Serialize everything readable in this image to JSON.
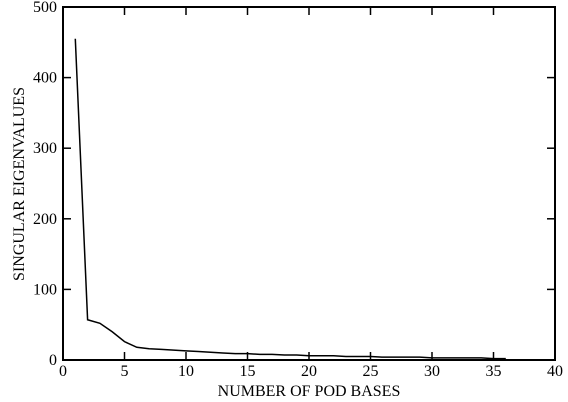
{
  "chart_data": {
    "type": "line",
    "x_label": "NUMBER OF POD BASES",
    "y_label": "SINGULAR EIGENVALUES",
    "series": [
      {
        "color": "#000000",
        "x": [
          1,
          2,
          3,
          4,
          5,
          6,
          7,
          8,
          9,
          10,
          11,
          12,
          13,
          14,
          15,
          16,
          17,
          18,
          19,
          20,
          21,
          22,
          23,
          24,
          25,
          26,
          27,
          28,
          29,
          30,
          31,
          32,
          33,
          34,
          35,
          36
        ],
        "values": [
          455,
          57,
          52,
          40,
          26,
          18,
          16,
          15,
          14,
          13,
          12,
          11,
          10,
          9,
          9,
          8,
          8,
          7,
          7,
          6,
          6,
          6,
          5,
          5,
          5,
          4,
          4,
          4,
          4,
          3,
          3,
          3,
          3,
          3,
          2,
          2
        ]
      }
    ],
    "xlim": [
      0,
      40
    ],
    "xticks": [
      0,
      5,
      10,
      15,
      20,
      25,
      30,
      35,
      40
    ],
    "ylim": [
      0,
      500
    ],
    "yticks": [
      0,
      100,
      200,
      300,
      400,
      500
    ]
  }
}
